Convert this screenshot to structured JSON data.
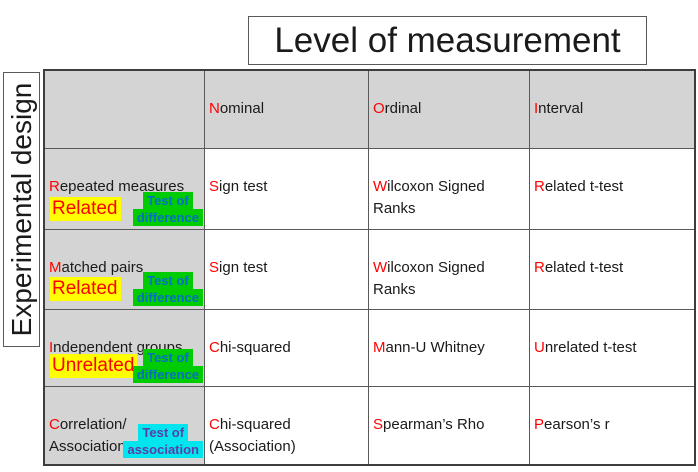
{
  "title": "Level of measurement",
  "side_label": "Experimental design",
  "colors": {
    "accent_red": "#ff0000",
    "highlight_yellow": "#ffff00",
    "highlight_green": "#00cc00",
    "tag_blue_text": "#0070c0",
    "highlight_cyan": "#00e5ee",
    "tag_purple_text": "#5b3fa8",
    "header_gray": "#d4d4d4"
  },
  "table": {
    "columns": [
      {
        "first": "N",
        "rest": "ominal"
      },
      {
        "first": "O",
        "rest": "rdinal"
      },
      {
        "first": "I",
        "rest": "nterval"
      }
    ],
    "rows": [
      {
        "header": {
          "first": "R",
          "rest": "epeated measures"
        },
        "relation_tag": "Related",
        "test_tag": {
          "line1": "Test of",
          "line2": "difference"
        },
        "cells": [
          {
            "first": "S",
            "rest": "ign test"
          },
          {
            "first": "W",
            "rest": "ilcoxon Signed\nRanks"
          },
          {
            "first": "R",
            "rest": "elated t-test"
          }
        ]
      },
      {
        "header": {
          "first": "M",
          "rest": "atched pairs"
        },
        "relation_tag": "Related",
        "test_tag": {
          "line1": "Test of",
          "line2": "difference"
        },
        "cells": [
          {
            "first": "S",
            "rest": "ign test"
          },
          {
            "first": "W",
            "rest": "ilcoxon Signed\nRanks"
          },
          {
            "first": "R",
            "rest": "elated t-test"
          }
        ]
      },
      {
        "header": {
          "first": "I",
          "rest": "ndependent groups"
        },
        "relation_tag": "Unrelated",
        "test_tag": {
          "line1": "Test of",
          "line2": "difference"
        },
        "cells": [
          {
            "first": "C",
            "rest": "hi-squared"
          },
          {
            "first": "M",
            "rest": "ann-U Whitney"
          },
          {
            "first": "U",
            "rest": "nrelated t-test"
          }
        ]
      },
      {
        "header": {
          "first": "C",
          "rest": "orrelation/\nAssociation"
        },
        "relation_tag": null,
        "test_tag": {
          "line1": "Test of",
          "line2": "association"
        },
        "cells": [
          {
            "first": "C",
            "rest": "hi-squared\n(Association)"
          },
          {
            "first": "S",
            "rest": "pearman’s Rho"
          },
          {
            "first": "P",
            "rest": "earson’s r"
          }
        ]
      }
    ]
  }
}
